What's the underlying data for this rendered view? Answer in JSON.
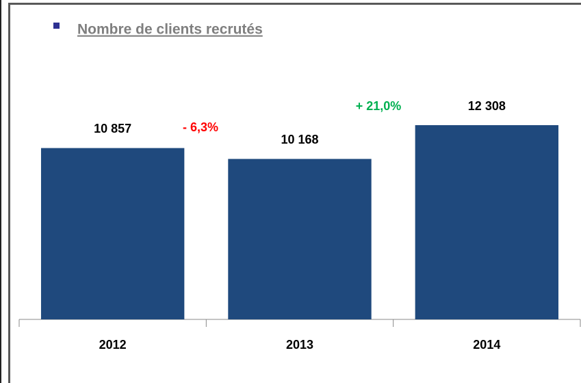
{
  "chart_data": {
    "type": "bar",
    "title": "Nombre de clients recrutés",
    "categories": [
      "2012",
      "2013",
      "2014"
    ],
    "values": [
      10857,
      10168,
      12308
    ],
    "value_labels": [
      "10 857",
      "10 168",
      "12 308"
    ],
    "color": "#1f497d",
    "annotations": [
      {
        "text": "- 6,3%",
        "color": "#ff0000"
      },
      {
        "text": "+ 21,0%",
        "color": "#00b050"
      }
    ]
  }
}
